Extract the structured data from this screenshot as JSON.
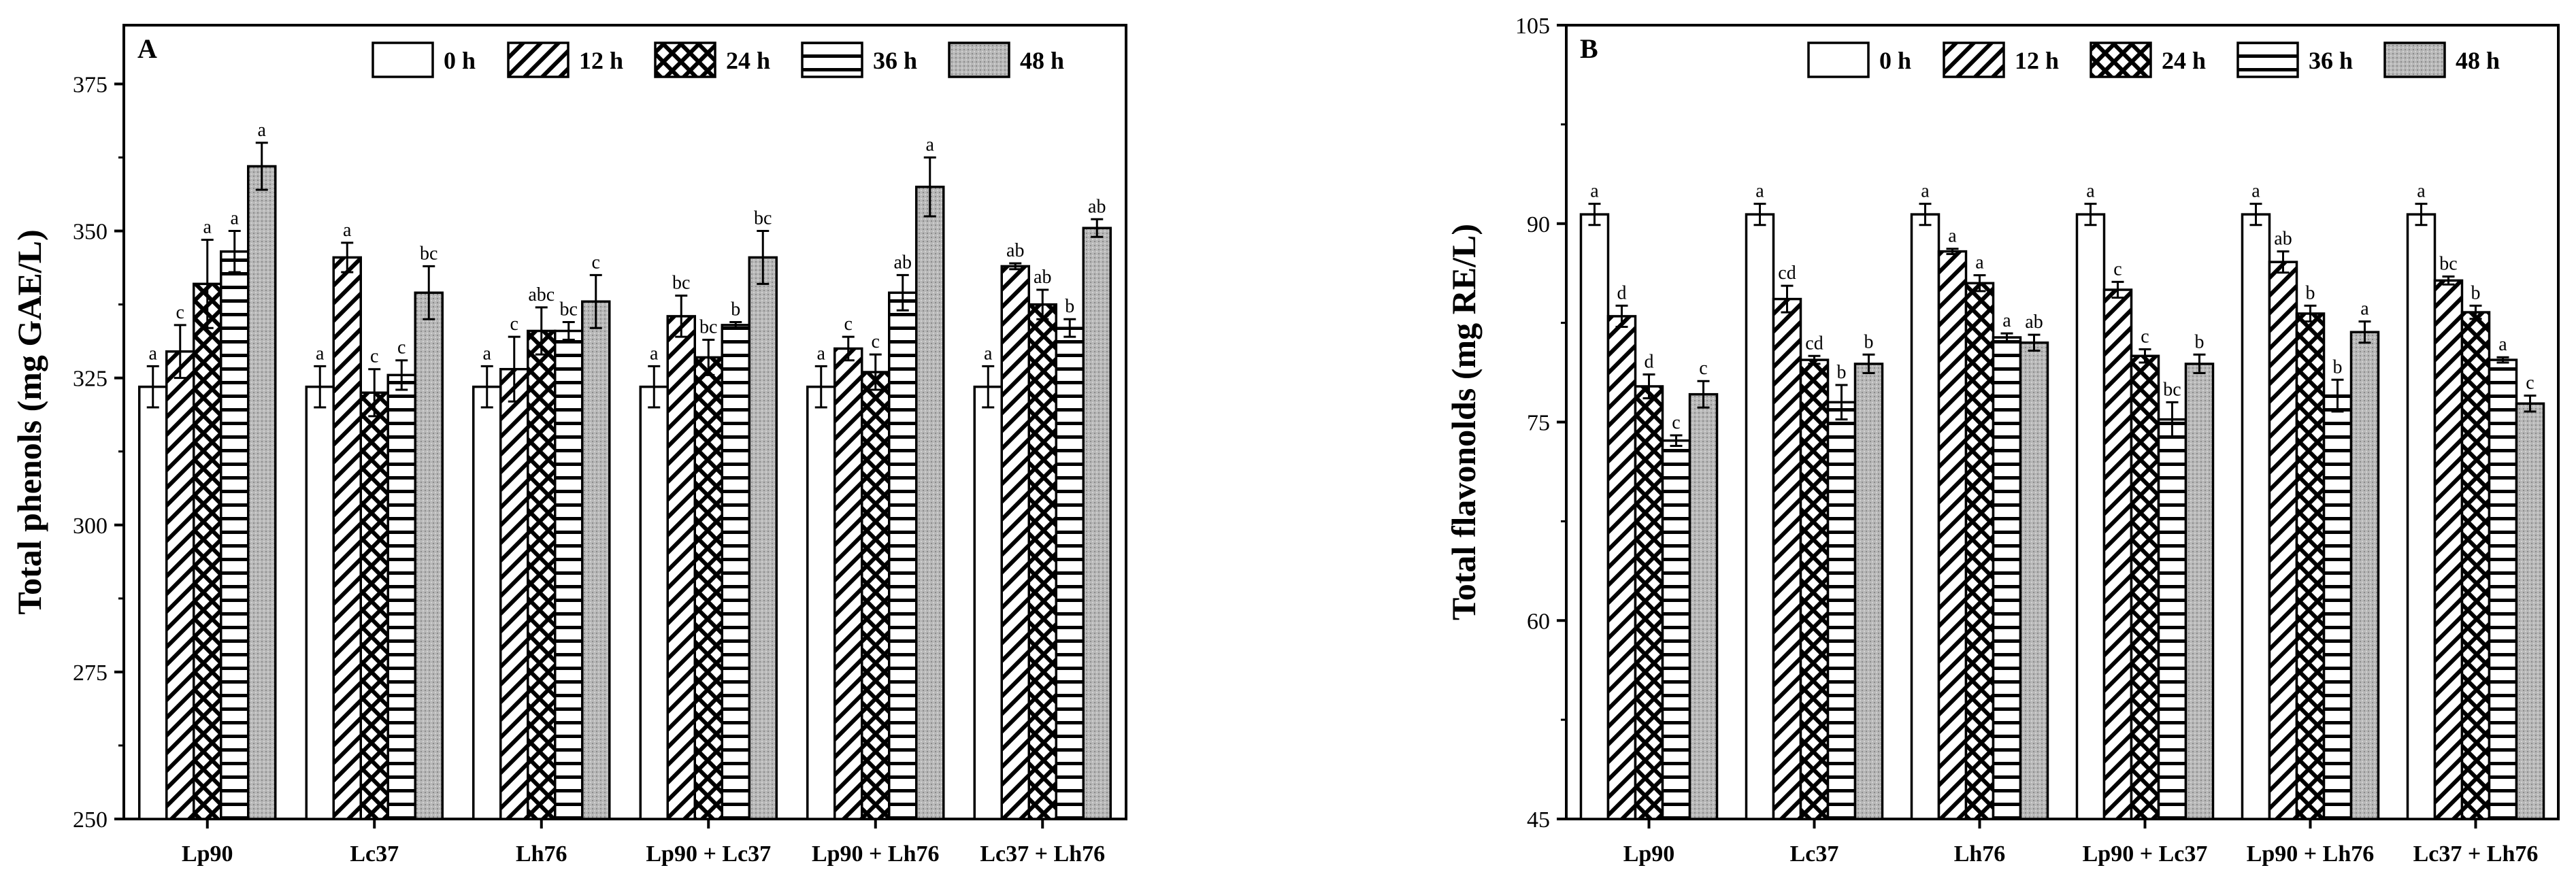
{
  "chart_data": [
    {
      "type": "bar",
      "panel_label": "A",
      "title": "",
      "xlabel": "",
      "ylabel": "Total phenols (mg GAE/L)",
      "ylim": [
        250,
        385
      ],
      "yticks": [
        250,
        275,
        300,
        325,
        350,
        375
      ],
      "yticks_labels": [
        "250",
        "275",
        "300",
        "325",
        "350",
        "375"
      ],
      "categories": [
        "Lp90",
        "Lc37",
        "Lh76",
        "Lp90 + Lc37",
        "Lp90 + Lh76",
        "Lc37 + Lh76"
      ],
      "legend_position": "top-right",
      "series": [
        {
          "name": "0 h",
          "pattern": "blank",
          "values": [
            323.5,
            323.5,
            323.5,
            323.5,
            323.5,
            323.5
          ],
          "errors": [
            3.5,
            3.5,
            3.5,
            3.5,
            3.5,
            3.5
          ],
          "letters": [
            "a",
            "a",
            "a",
            "a",
            "a",
            "a"
          ]
        },
        {
          "name": "12 h",
          "pattern": "diagonal",
          "values": [
            329.5,
            345.5,
            326.5,
            335.5,
            330.0,
            344.0
          ],
          "errors": [
            4.5,
            2.5,
            5.5,
            3.5,
            2.0,
            0.5
          ],
          "letters": [
            "c",
            "a",
            "c",
            "bc",
            "c",
            "ab"
          ]
        },
        {
          "name": "24 h",
          "pattern": "crosshatch",
          "values": [
            341.0,
            322.5,
            333.0,
            328.5,
            326.0,
            337.5
          ],
          "errors": [
            7.5,
            4.0,
            4.0,
            3.0,
            3.0,
            2.5
          ],
          "letters": [
            "a",
            "c",
            "abc",
            "bc",
            "c",
            "ab"
          ]
        },
        {
          "name": "36 h",
          "pattern": "horizontal",
          "values": [
            346.5,
            325.5,
            333.0,
            334.0,
            339.5,
            333.5
          ],
          "errors": [
            3.5,
            2.5,
            1.5,
            0.5,
            3.0,
            1.5
          ],
          "letters": [
            "a",
            "c",
            "bc",
            "b",
            "ab",
            "b"
          ]
        },
        {
          "name": "48 h",
          "pattern": "dotted",
          "values": [
            361.0,
            339.5,
            338.0,
            345.5,
            357.5,
            350.5
          ],
          "errors": [
            4.0,
            4.5,
            4.5,
            4.5,
            5.0,
            1.5
          ],
          "letters": [
            "a",
            "bc",
            "c",
            "bc",
            "a",
            "ab"
          ]
        }
      ]
    },
    {
      "type": "bar",
      "panel_label": "B",
      "title": "",
      "xlabel": "",
      "ylabel": "Total flavonolds (mg RE/L)",
      "ylim": [
        45,
        105
      ],
      "yticks": [
        45,
        60,
        75,
        90,
        105
      ],
      "yticks_labels": [
        "45",
        "60",
        "75",
        "90",
        "105"
      ],
      "categories": [
        "Lp90",
        "Lc37",
        "Lh76",
        "Lp90 + Lc37",
        "Lp90 + Lh76",
        "Lc37 + Lh76"
      ],
      "legend_position": "top-right",
      "series": [
        {
          "name": "0 h",
          "pattern": "blank",
          "values": [
            90.7,
            90.7,
            90.7,
            90.7,
            90.7,
            90.7
          ],
          "errors": [
            0.8,
            0.8,
            0.8,
            0.8,
            0.8,
            0.8
          ],
          "letters": [
            "a",
            "a",
            "a",
            "a",
            "a",
            "a"
          ]
        },
        {
          "name": "12 h",
          "pattern": "diagonal",
          "values": [
            83.0,
            84.3,
            87.9,
            85.0,
            87.1,
            85.7
          ],
          "errors": [
            0.8,
            1.0,
            0.2,
            0.6,
            0.8,
            0.3
          ],
          "letters": [
            "d",
            "cd",
            "a",
            "c",
            "ab",
            "bc"
          ]
        },
        {
          "name": "24 h",
          "pattern": "crosshatch",
          "values": [
            77.7,
            79.7,
            85.5,
            80.0,
            83.2,
            83.3
          ],
          "errors": [
            0.9,
            0.3,
            0.6,
            0.5,
            0.6,
            0.5
          ],
          "letters": [
            "d",
            "cd",
            "a",
            "c",
            "b",
            "b"
          ]
        },
        {
          "name": "36 h",
          "pattern": "horizontal",
          "values": [
            73.6,
            76.5,
            81.4,
            75.2,
            77.0,
            79.7
          ],
          "errors": [
            0.4,
            1.3,
            0.3,
            1.3,
            1.2,
            0.2
          ],
          "letters": [
            "c",
            "b",
            "a",
            "bc",
            "b",
            "a"
          ]
        },
        {
          "name": "48 h",
          "pattern": "dotted",
          "values": [
            77.1,
            79.4,
            81.0,
            79.4,
            81.8,
            76.4
          ],
          "errors": [
            1.0,
            0.7,
            0.6,
            0.7,
            0.8,
            0.6
          ],
          "letters": [
            "c",
            "b",
            "ab",
            "b",
            "a",
            "c"
          ]
        }
      ]
    }
  ],
  "styles": {
    "axis_color": "#000000",
    "bar_fill": "#ffffff",
    "dotted_fill": "#b5b5b5"
  }
}
